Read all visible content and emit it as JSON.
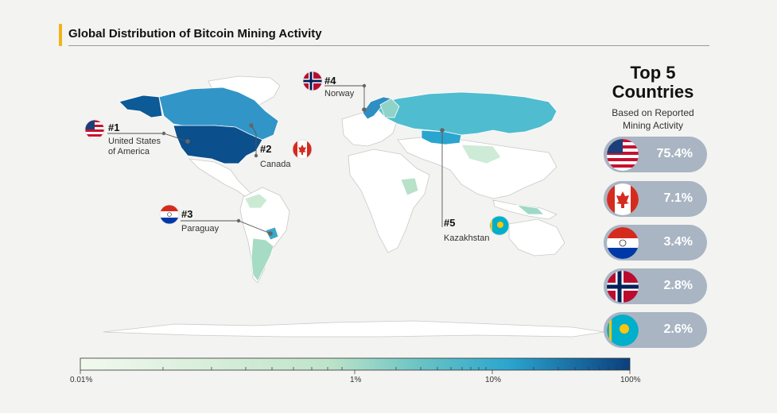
{
  "title": "Global Distribution of Bitcoin Mining Activity",
  "panel": {
    "title_line1": "Top 5",
    "title_line2": "Countries",
    "subtitle_line1": "Based on Reported",
    "subtitle_line2": "Mining Activity"
  },
  "countries": [
    {
      "rank": "#1",
      "name_line1": "United States",
      "name_line2": "of America",
      "share": "75.4%",
      "flag_icon": "usa-flag-icon"
    },
    {
      "rank": "#2",
      "name_line1": "Canada",
      "name_line2": "",
      "share": "7.1%",
      "flag_icon": "canada-flag-icon"
    },
    {
      "rank": "#3",
      "name_line1": "Paraguay",
      "name_line2": "",
      "share": "3.4%",
      "flag_icon": "paraguay-flag-icon"
    },
    {
      "rank": "#4",
      "name_line1": "Norway",
      "name_line2": "",
      "share": "2.8%",
      "flag_icon": "norway-flag-icon"
    },
    {
      "rank": "#5",
      "name_line1": "Kazakhstan",
      "name_line2": "",
      "share": "2.6%",
      "flag_icon": "kazakhstan-flag-icon"
    }
  ],
  "color_scale": {
    "type": "log",
    "ticks": [
      "0.01%",
      "1%",
      "10%",
      "100%"
    ],
    "colors": [
      "#eef7ea",
      "#bfe4c9",
      "#69c3c4",
      "#2aa5cf",
      "#0b4f8c"
    ]
  }
}
